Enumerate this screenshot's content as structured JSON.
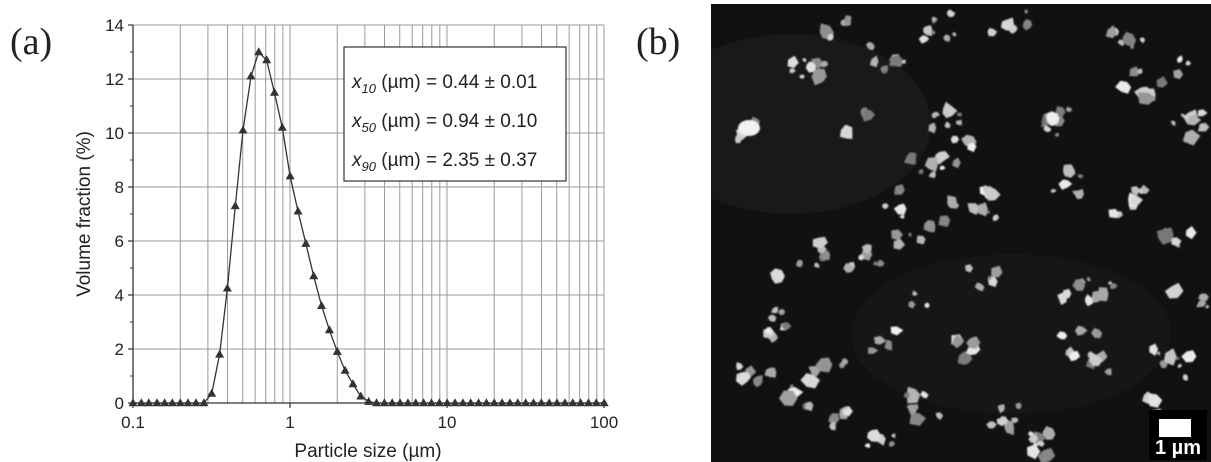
{
  "panels": {
    "a_label": "(a)",
    "b_label": "(b)"
  },
  "chart_data": {
    "type": "line",
    "xlabel": "Particle size (µm)",
    "ylabel": "Volume fraction (%)",
    "xscale": "log",
    "xlim": [
      0.1,
      100
    ],
    "ylim": [
      0,
      14
    ],
    "xticks": [
      "0.1",
      "1",
      "10",
      "100"
    ],
    "yticks": [
      "0",
      "2",
      "4",
      "6",
      "8",
      "10",
      "12",
      "14"
    ],
    "grid": "vertical minor log gridlines and horizontal major gridlines",
    "marker": "triangle",
    "series": [
      {
        "x": [
          0.1,
          0.113,
          0.126,
          0.142,
          0.159,
          0.178,
          0.2,
          0.224,
          0.252,
          0.283,
          0.317,
          0.356,
          0.399,
          0.448,
          0.502,
          0.564,
          0.632,
          0.71,
          0.796,
          0.893,
          1.002,
          1.125,
          1.262,
          1.416,
          1.589,
          1.783,
          2.0,
          2.244,
          2.518,
          2.825,
          3.17,
          3.557,
          3.991,
          4.477,
          5.024,
          5.637,
          6.325,
          7.096,
          7.962,
          8.934,
          10.024,
          11.247,
          12.619,
          14.159,
          15.887,
          17.825,
          20.0,
          22.44,
          25.179,
          28.251,
          31.698,
          35.566,
          39.905,
          44.774,
          50.238,
          56.368,
          63.246,
          70.963,
          79.621,
          89.337,
          100.237
        ],
        "y": [
          0,
          0,
          0,
          0,
          0,
          0,
          0,
          0,
          0,
          0,
          0.35,
          1.8,
          4.25,
          7.3,
          10.1,
          12.1,
          13.0,
          12.7,
          11.5,
          10.2,
          8.4,
          7.1,
          5.9,
          4.7,
          3.6,
          2.7,
          1.9,
          1.2,
          0.7,
          0.25,
          0.05,
          0,
          0,
          0,
          0,
          0,
          0,
          0,
          0,
          0,
          0,
          0,
          0,
          0,
          0,
          0,
          0,
          0,
          0,
          0,
          0,
          0,
          0,
          0,
          0,
          0,
          0,
          0,
          0,
          0,
          0
        ]
      }
    ],
    "annotations": [
      {
        "var": "x",
        "sub": "10",
        "text": " (µm) = 0.44 ± 0.01"
      },
      {
        "var": "x",
        "sub": "50",
        "text": " (µm) = 0.94 ± 0.10"
      },
      {
        "var": "x",
        "sub": "90",
        "text": " (µm) = 2.35 ± 0.37"
      }
    ]
  },
  "sem_image": {
    "scale_label": "1 µm"
  }
}
